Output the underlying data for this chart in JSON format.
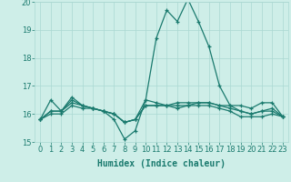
{
  "xlabel": "Humidex (Indice chaleur)",
  "x": [
    0,
    1,
    2,
    3,
    4,
    5,
    6,
    7,
    8,
    9,
    10,
    11,
    12,
    13,
    14,
    15,
    16,
    17,
    18,
    19,
    20,
    21,
    22,
    23
  ],
  "series": [
    [
      15.8,
      16.5,
      16.1,
      16.5,
      16.3,
      16.2,
      16.1,
      15.8,
      15.1,
      15.4,
      16.5,
      18.7,
      19.7,
      19.3,
      20.1,
      19.3,
      18.4,
      17.0,
      16.3,
      16.3,
      16.2,
      16.4,
      16.4,
      15.9
    ],
    [
      15.8,
      16.1,
      16.1,
      16.6,
      16.3,
      16.2,
      16.1,
      16.0,
      15.7,
      15.8,
      16.5,
      16.4,
      16.3,
      16.4,
      16.4,
      16.4,
      16.4,
      16.3,
      16.3,
      16.1,
      16.0,
      16.1,
      16.2,
      15.9
    ],
    [
      15.8,
      16.1,
      16.1,
      16.4,
      16.3,
      16.2,
      16.1,
      16.0,
      15.7,
      15.8,
      16.3,
      16.3,
      16.3,
      16.3,
      16.3,
      16.4,
      16.4,
      16.3,
      16.2,
      16.1,
      16.0,
      16.1,
      16.1,
      15.9
    ],
    [
      15.8,
      16.0,
      16.0,
      16.3,
      16.2,
      16.2,
      16.1,
      16.0,
      15.7,
      15.8,
      16.3,
      16.3,
      16.3,
      16.2,
      16.3,
      16.3,
      16.3,
      16.2,
      16.1,
      15.9,
      15.9,
      15.9,
      16.0,
      15.9
    ]
  ],
  "line_color": "#1a7a6e",
  "marker": "+",
  "ylim": [
    15,
    20
  ],
  "yticks": [
    15,
    16,
    17,
    18,
    19,
    20
  ],
  "xlim": [
    -0.5,
    23.5
  ],
  "bg_color": "#ceeee8",
  "grid_color": "#aad8d2",
  "axis_color": "#1a7a6e",
  "tick_fontsize": 6,
  "label_fontsize": 7
}
